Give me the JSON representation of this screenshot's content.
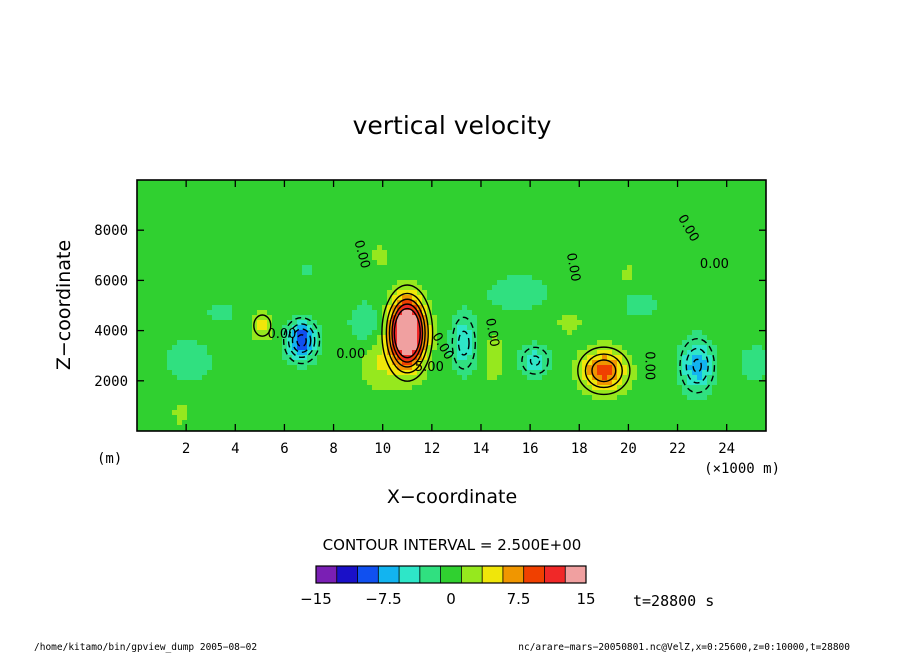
{
  "chart_data": {
    "type": "heatmap",
    "title": "vertical velocity",
    "xlabel": "X−coordinate",
    "ylabel": "Z−coordinate",
    "x_unit": "(×1000 m)",
    "y_unit": "(m)",
    "xlim": [
      0,
      25600
    ],
    "ylim": [
      0,
      10000
    ],
    "x_ticks": [
      "2",
      "4",
      "6",
      "8",
      "10",
      "12",
      "14",
      "16",
      "18",
      "20",
      "22",
      "24"
    ],
    "y_ticks": [
      "2000",
      "4000",
      "6000",
      "8000"
    ],
    "contour_interval_label": "CONTOUR INTERVAL = 2.500E+00",
    "contour_labels": [
      "0.00",
      "0.00",
      "0.00",
      "0.00",
      "0.00",
      "0.00",
      "0.00",
      "0.00",
      "0.00",
      "5.00"
    ],
    "colorbar": {
      "levels": [
        -15,
        -12.5,
        -10,
        -7.5,
        -5,
        -2.5,
        0,
        2.5,
        5,
        7.5,
        10,
        12.5,
        15
      ],
      "tick_labels": [
        "−15",
        "−7.5",
        "0",
        "7.5",
        "15"
      ],
      "colors": [
        "#7a1fb4",
        "#1a10c8",
        "#1050f0",
        "#12b4f0",
        "#2ee6c8",
        "#30e080",
        "#30d030",
        "#96e81e",
        "#f0e60a",
        "#f09600",
        "#f04000",
        "#f02828",
        "#f0a0a0"
      ]
    },
    "background_level_color": "#30d030",
    "cells": [
      {
        "x": 11000,
        "z": 3900,
        "sx": 700,
        "sz": 1300,
        "amp": 22
      },
      {
        "x": 6700,
        "z": 3600,
        "sx": 600,
        "sz": 750,
        "amp": -11
      },
      {
        "x": 19000,
        "z": 2400,
        "sx": 900,
        "sz": 800,
        "amp": 10
      },
      {
        "x": 22800,
        "z": 2600,
        "sx": 650,
        "sz": 1000,
        "amp": -8
      },
      {
        "x": 13300,
        "z": 3500,
        "sx": 500,
        "sz": 1100,
        "amp": -6
      },
      {
        "x": 16200,
        "z": 2800,
        "sx": 600,
        "sz": 600,
        "amp": -5.5
      },
      {
        "x": 5100,
        "z": 4200,
        "sx": 450,
        "sz": 550,
        "amp": 4.5
      },
      {
        "x": 14500,
        "z": 2900,
        "sx": 350,
        "sz": 900,
        "amp": 3.5
      },
      {
        "x": 2100,
        "z": 2800,
        "sx": 900,
        "sz": 800,
        "amp": -3.5
      },
      {
        "x": 3400,
        "z": 4700,
        "sx": 500,
        "sz": 400,
        "amp": -3
      },
      {
        "x": 9300,
        "z": 4300,
        "sx": 700,
        "sz": 900,
        "amp": -3
      },
      {
        "x": 20500,
        "z": 5000,
        "sx": 700,
        "sz": 500,
        "amp": -3
      },
      {
        "x": 25200,
        "z": 2700,
        "sx": 700,
        "sz": 700,
        "amp": -3
      },
      {
        "x": 9800,
        "z": 2600,
        "sx": 700,
        "sz": 900,
        "amp": 3.5
      },
      {
        "x": 1800,
        "z": 700,
        "sx": 300,
        "sz": 400,
        "amp": 3
      },
      {
        "x": 9900,
        "z": 7000,
        "sx": 300,
        "sz": 400,
        "amp": 3
      },
      {
        "x": 20000,
        "z": 6300,
        "sx": 250,
        "sz": 300,
        "amp": 3
      },
      {
        "x": 15500,
        "z": 5500,
        "sx": 1600,
        "sz": 900,
        "amp": -2.2
      },
      {
        "x": 7000,
        "z": 6400,
        "sx": 250,
        "sz": 250,
        "amp": -3
      },
      {
        "x": 17600,
        "z": 4300,
        "sx": 600,
        "sz": 500,
        "amp": 2.2
      }
    ],
    "time_label": "t=28800 s",
    "footer_left": "/home/kitamo/bin/gpview_dump  2005−08−02",
    "footer_right": "nc/arare−mars−20050801.nc@VelZ,x=0:25600,z=0:10000,t=28800"
  }
}
